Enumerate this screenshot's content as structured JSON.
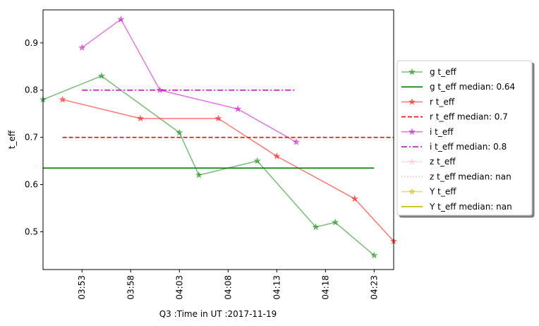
{
  "chart_data": {
    "type": "line",
    "xlabel": "Q3 :Time in UT :2017-11-19",
    "ylabel": "t_eff",
    "x_tick_labels": [
      "03:53",
      "03:58",
      "04:03",
      "04:08",
      "04:13",
      "04:18",
      "04:23"
    ],
    "x_ticks": [
      "03:53",
      "03:58",
      "04:03",
      "04:08",
      "04:13",
      "04:18",
      "04:23"
    ],
    "xlim": [
      "03:49",
      "04:25"
    ],
    "y_ticks": [
      0.5,
      0.6,
      0.7,
      0.8,
      0.9
    ],
    "y_tick_labels": [
      "0.5",
      "0.6",
      "0.7",
      "0.8",
      "0.9"
    ],
    "ylim": [
      0.42,
      0.97
    ],
    "grid": false,
    "legend_position": "right, outside plot",
    "series": [
      {
        "name": "g t_eff",
        "kind": "data",
        "color": "#008000",
        "alpha": 0.5,
        "marker": "star",
        "x": [
          "03:49",
          "03:55",
          "04:03",
          "04:05",
          "04:11",
          "04:17",
          "04:19",
          "04:23"
        ],
        "y": [
          0.78,
          0.83,
          0.71,
          0.62,
          0.65,
          0.51,
          0.52,
          0.45
        ]
      },
      {
        "name": "g t_eff median: 0.64",
        "kind": "median",
        "color": "#008000",
        "dash": "solid",
        "x": [
          "03:49",
          "04:23"
        ],
        "y": [
          0.635,
          0.635
        ]
      },
      {
        "name": "r t_eff",
        "kind": "data",
        "color": "#ff0000",
        "alpha": 0.5,
        "marker": "star",
        "x": [
          "03:51",
          "03:59",
          "04:07",
          "04:13",
          "04:21",
          "04:25"
        ],
        "y": [
          0.78,
          0.74,
          0.74,
          0.66,
          0.57,
          0.48
        ]
      },
      {
        "name": "r t_eff median: 0.7",
        "kind": "median",
        "color": "#ff0000",
        "dash": "dashed",
        "x": [
          "03:51",
          "04:25"
        ],
        "y": [
          0.7,
          0.7
        ]
      },
      {
        "name": "i t_eff",
        "kind": "data",
        "color": "#bf00bf",
        "alpha": 0.5,
        "marker": "star",
        "x": [
          "03:53",
          "03:57",
          "04:01",
          "04:09",
          "04:15"
        ],
        "y": [
          0.89,
          0.95,
          0.8,
          0.76,
          0.69
        ]
      },
      {
        "name": "i t_eff median: 0.8",
        "kind": "median",
        "color": "#bf00bf",
        "dash": "dashdot",
        "x": [
          "03:53",
          "04:15"
        ],
        "y": [
          0.8,
          0.8
        ]
      },
      {
        "name": "z t_eff",
        "kind": "data",
        "color": "#ffc0cb",
        "alpha": 0.5,
        "marker": "star",
        "x": [],
        "y": []
      },
      {
        "name": "z t_eff median: nan",
        "kind": "median",
        "color": "#ffc0cb",
        "dash": "dotted",
        "x": [],
        "y": []
      },
      {
        "name": "Y t_eff",
        "kind": "data",
        "color": "#bfbf00",
        "alpha": 0.5,
        "marker": "star",
        "x": [],
        "y": []
      },
      {
        "name": "Y t_eff median: nan",
        "kind": "median",
        "color": "#bfbf00",
        "dash": "solid",
        "x": [],
        "y": []
      }
    ]
  }
}
